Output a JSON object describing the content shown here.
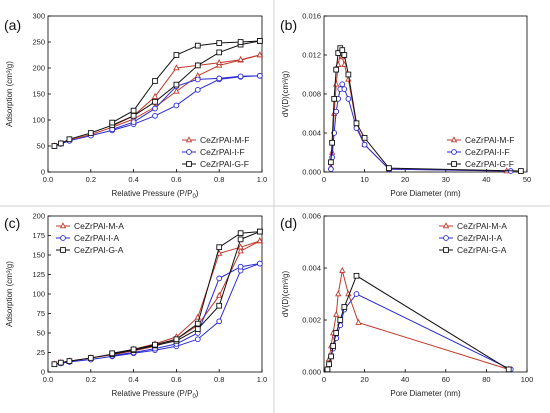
{
  "chart_data": [
    {
      "panel": "(a)",
      "type": "line",
      "xlabel": "Relative Pressure (P/P",
      "xlabel_sub": "0",
      "xlabel_end": ")",
      "ylabel": "Adsorption (cm³/g)",
      "xlim": [
        0,
        1
      ],
      "ylim": [
        0,
        300
      ],
      "xticks": [
        "0.0",
        "0.2",
        "0.4",
        "0.6",
        "0.8",
        "1.0"
      ],
      "yticks": [
        "0",
        "50",
        "100",
        "150",
        "200",
        "250",
        "300"
      ],
      "xtick_values": [
        0,
        0.2,
        0.4,
        0.6,
        0.8,
        1.0
      ],
      "ytick_values": [
        0,
        50,
        100,
        150,
        200,
        250,
        300
      ],
      "legend_position": "bottom-right",
      "series": [
        {
          "name": "CeZrPAl-M-F",
          "color": "#c0392b",
          "marker": "triangle",
          "adsorption": [
            [
              0.03,
              50
            ],
            [
              0.06,
              55
            ],
            [
              0.1,
              62
            ],
            [
              0.2,
              72
            ],
            [
              0.3,
              86
            ],
            [
              0.4,
              102
            ],
            [
              0.5,
              125
            ],
            [
              0.6,
              155
            ],
            [
              0.7,
              185
            ],
            [
              0.8,
              205
            ],
            [
              0.9,
              215
            ],
            [
              0.99,
              225
            ]
          ],
          "desorption": [
            [
              0.99,
              225
            ],
            [
              0.9,
              216
            ],
            [
              0.8,
              210
            ],
            [
              0.7,
              205
            ],
            [
              0.6,
              200
            ],
            [
              0.5,
              145
            ],
            [
              0.4,
              108
            ],
            [
              0.3,
              88
            ]
          ]
        },
        {
          "name": "CeZrPAl-I-F",
          "color": "#2a2ad4",
          "marker": "circle",
          "adsorption": [
            [
              0.03,
              50
            ],
            [
              0.06,
              54
            ],
            [
              0.1,
              60
            ],
            [
              0.2,
              70
            ],
            [
              0.3,
              80
            ],
            [
              0.4,
              92
            ],
            [
              0.5,
              108
            ],
            [
              0.6,
              128
            ],
            [
              0.7,
              158
            ],
            [
              0.8,
              178
            ],
            [
              0.9,
              183
            ],
            [
              0.99,
              185
            ]
          ],
          "desorption": [
            [
              0.99,
              185
            ],
            [
              0.9,
              184
            ],
            [
              0.8,
              180
            ],
            [
              0.7,
              178
            ],
            [
              0.6,
              165
            ],
            [
              0.5,
              122
            ],
            [
              0.4,
              96
            ],
            [
              0.3,
              82
            ]
          ]
        },
        {
          "name": "CeZrPAl-G-F",
          "color": "#111111",
          "marker": "square",
          "adsorption": [
            [
              0.03,
              50
            ],
            [
              0.06,
              55
            ],
            [
              0.1,
              63
            ],
            [
              0.2,
              75
            ],
            [
              0.3,
              90
            ],
            [
              0.4,
              108
            ],
            [
              0.5,
              135
            ],
            [
              0.6,
              168
            ],
            [
              0.7,
              205
            ],
            [
              0.8,
              230
            ],
            [
              0.9,
              245
            ],
            [
              0.99,
              252
            ]
          ],
          "desorption": [
            [
              0.99,
              252
            ],
            [
              0.9,
              250
            ],
            [
              0.8,
              248
            ],
            [
              0.7,
              243
            ],
            [
              0.6,
              225
            ],
            [
              0.5,
              175
            ],
            [
              0.4,
              118
            ],
            [
              0.3,
              95
            ]
          ]
        }
      ]
    },
    {
      "panel": "(b)",
      "type": "line",
      "xlabel": "Pore Diameter (nm)",
      "ylabel": "dV(D)(cm³/g)",
      "xlim": [
        0,
        50
      ],
      "ylim": [
        0,
        0.016
      ],
      "xticks": [
        "0",
        "10",
        "20",
        "30",
        "40",
        "50"
      ],
      "yticks": [
        "0.000",
        "0.004",
        "0.008",
        "0.012",
        "0.016"
      ],
      "xtick_values": [
        0,
        10,
        20,
        30,
        40,
        50
      ],
      "ytick_values": [
        0,
        0.004,
        0.008,
        0.012,
        0.016
      ],
      "legend_position": "bottom-right",
      "series": [
        {
          "name": "CeZrPAl-M-F",
          "color": "#c0392b",
          "marker": "triangle",
          "points": [
            [
              1.7,
              0.0005
            ],
            [
              2.0,
              0.002
            ],
            [
              2.5,
              0.006
            ],
            [
              3.0,
              0.009
            ],
            [
              3.5,
              0.011
            ],
            [
              4.0,
              0.0122
            ],
            [
              4.5,
              0.0118
            ],
            [
              5.0,
              0.011
            ],
            [
              6.0,
              0.0095
            ],
            [
              8.0,
              0.0048
            ],
            [
              10.0,
              0.0028
            ],
            [
              16.0,
              0.0003
            ],
            [
              45.0,
              0.0001
            ]
          ]
        },
        {
          "name": "CeZrPAl-I-F",
          "color": "#2a2ad4",
          "marker": "circle",
          "points": [
            [
              1.7,
              0.0003
            ],
            [
              2.0,
              0.0015
            ],
            [
              2.5,
              0.004
            ],
            [
              3.0,
              0.0062
            ],
            [
              3.5,
              0.0075
            ],
            [
              4.0,
              0.0085
            ],
            [
              4.5,
              0.009
            ],
            [
              5.0,
              0.0085
            ],
            [
              6.0,
              0.0075
            ],
            [
              8.0,
              0.0045
            ],
            [
              10.0,
              0.0028
            ],
            [
              16.0,
              0.0003
            ],
            [
              46.0,
              0.0001
            ]
          ]
        },
        {
          "name": "CeZrPAl-G-F",
          "color": "#111111",
          "marker": "square",
          "points": [
            [
              1.7,
              0.001
            ],
            [
              2.0,
              0.003
            ],
            [
              2.5,
              0.0075
            ],
            [
              3.0,
              0.0105
            ],
            [
              3.5,
              0.0122
            ],
            [
              4.0,
              0.0127
            ],
            [
              4.5,
              0.0125
            ],
            [
              5.0,
              0.012
            ],
            [
              6.0,
              0.01
            ],
            [
              8.0,
              0.005
            ],
            [
              10.0,
              0.0035
            ],
            [
              16.0,
              0.0004
            ],
            [
              48.5,
              0.0001
            ]
          ]
        }
      ]
    },
    {
      "panel": "(c)",
      "type": "line",
      "xlabel": "Relative Pressure (P/P",
      "xlabel_sub": "0",
      "xlabel_end": ")",
      "ylabel": "Adsorption (cm³/g)",
      "xlim": [
        0,
        1
      ],
      "ylim": [
        0,
        200
      ],
      "xticks": [
        "0.0",
        "0.2",
        "0.4",
        "0.6",
        "0.8",
        "1.0"
      ],
      "yticks": [
        "0",
        "25",
        "50",
        "75",
        "100",
        "125",
        "150",
        "175",
        "200"
      ],
      "xtick_values": [
        0,
        0.2,
        0.4,
        0.6,
        0.8,
        1.0
      ],
      "ytick_values": [
        0,
        25,
        50,
        75,
        100,
        125,
        150,
        175,
        200
      ],
      "legend_position": "top-left",
      "series": [
        {
          "name": "CeZrPAl-M-A",
          "color": "#c0392b",
          "marker": "triangle",
          "adsorption": [
            [
              0.03,
              10
            ],
            [
              0.06,
              12
            ],
            [
              0.1,
              14
            ],
            [
              0.2,
              18
            ],
            [
              0.3,
              22
            ],
            [
              0.4,
              27
            ],
            [
              0.5,
              33
            ],
            [
              0.6,
              42
            ],
            [
              0.7,
              60
            ],
            [
              0.8,
              98
            ],
            [
              0.9,
              155
            ],
            [
              0.99,
              168
            ]
          ],
          "desorption": [
            [
              0.99,
              168
            ],
            [
              0.9,
              160
            ],
            [
              0.8,
              152
            ],
            [
              0.7,
              70
            ],
            [
              0.6,
              45
            ],
            [
              0.5,
              36
            ],
            [
              0.4,
              29
            ],
            [
              0.3,
              23
            ]
          ]
        },
        {
          "name": "CeZrPAl-I-A",
          "color": "#2a2ad4",
          "marker": "circle",
          "adsorption": [
            [
              0.03,
              10
            ],
            [
              0.06,
              11
            ],
            [
              0.1,
              13
            ],
            [
              0.2,
              16
            ],
            [
              0.3,
              20
            ],
            [
              0.4,
              24
            ],
            [
              0.5,
              28
            ],
            [
              0.6,
              33
            ],
            [
              0.7,
              42
            ],
            [
              0.8,
              65
            ],
            [
              0.9,
              130
            ],
            [
              0.99,
              139
            ]
          ],
          "desorption": [
            [
              0.99,
              139
            ],
            [
              0.9,
              135
            ],
            [
              0.8,
              120
            ],
            [
              0.7,
              50
            ],
            [
              0.6,
              36
            ],
            [
              0.5,
              30
            ],
            [
              0.4,
              25
            ],
            [
              0.3,
              21
            ]
          ]
        },
        {
          "name": "CeZrPAl-G-A",
          "color": "#111111",
          "marker": "square",
          "adsorption": [
            [
              0.03,
              10
            ],
            [
              0.06,
              12
            ],
            [
              0.1,
              14
            ],
            [
              0.2,
              18
            ],
            [
              0.3,
              23
            ],
            [
              0.4,
              28
            ],
            [
              0.5,
              34
            ],
            [
              0.6,
              40
            ],
            [
              0.7,
              55
            ],
            [
              0.8,
              85
            ],
            [
              0.9,
              170
            ],
            [
              0.99,
              180
            ]
          ],
          "desorption": [
            [
              0.99,
              180
            ],
            [
              0.9,
              178
            ],
            [
              0.8,
              160
            ],
            [
              0.7,
              62
            ],
            [
              0.6,
              42
            ],
            [
              0.5,
              35
            ],
            [
              0.4,
              29
            ],
            [
              0.3,
              24
            ]
          ]
        }
      ]
    },
    {
      "panel": "(d)",
      "type": "line",
      "xlabel": "Pore Diameter (nm)",
      "ylabel": "dV(D)(cm³/g)",
      "xlim": [
        0,
        100
      ],
      "ylim": [
        0,
        0.006
      ],
      "xticks": [
        "0",
        "20",
        "40",
        "60",
        "80",
        "100"
      ],
      "yticks": [
        "0.000",
        "0.002",
        "0.004",
        "0.006"
      ],
      "xtick_values": [
        0,
        20,
        40,
        60,
        80,
        100
      ],
      "ytick_values": [
        0,
        0.002,
        0.004,
        0.006
      ],
      "legend_position": "top-right",
      "series": [
        {
          "name": "CeZrPAl-M-A",
          "color": "#c0392b",
          "marker": "triangle",
          "points": [
            [
              1.7,
              0.0001
            ],
            [
              2.5,
              0.0005
            ],
            [
              3.5,
              0.001
            ],
            [
              4.5,
              0.0015
            ],
            [
              6.0,
              0.0022
            ],
            [
              7.0,
              0.003
            ],
            [
              9.0,
              0.0039
            ],
            [
              12.0,
              0.003
            ],
            [
              17.0,
              0.0019
            ],
            [
              91.0,
              0.0001
            ]
          ]
        },
        {
          "name": "CeZrPAl-I-A",
          "color": "#2a2ad4",
          "marker": "circle",
          "points": [
            [
              1.7,
              0.0001
            ],
            [
              2.5,
              0.0003
            ],
            [
              3.5,
              0.0006
            ],
            [
              4.5,
              0.0009
            ],
            [
              6.0,
              0.0013
            ],
            [
              8.0,
              0.0018
            ],
            [
              10.0,
              0.0024
            ],
            [
              16.0,
              0.003
            ],
            [
              92.0,
              0.0001
            ]
          ]
        },
        {
          "name": "CeZrPAl-G-A",
          "color": "#111111",
          "marker": "square",
          "points": [
            [
              1.7,
              0.0001
            ],
            [
              2.5,
              0.0003
            ],
            [
              3.5,
              0.0006
            ],
            [
              4.5,
              0.001
            ],
            [
              6.0,
              0.0015
            ],
            [
              8.0,
              0.002
            ],
            [
              10.0,
              0.0025
            ],
            [
              16.0,
              0.0037
            ],
            [
              91.0,
              0.0001
            ]
          ]
        }
      ]
    }
  ]
}
